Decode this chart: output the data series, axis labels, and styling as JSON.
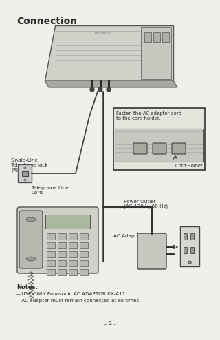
{
  "title": "Connection",
  "page_number": "- 9 -",
  "bg_color": "#f0efeb",
  "notes_header": "Notes:",
  "note1": "—USE ONLY Panasonic AC ADAPTOR KX-A11.",
  "note2": "—AC adaptor must remain connected at all times.",
  "label_single_line": "Single-Line\nTelephone Jack\n(RJ11C)",
  "label_tel_line": "Telephone Line\nCord",
  "label_fasten": "Fasten the AC adaptor cord\nto the cord holder.",
  "label_cord_holder": "Cord Holder",
  "label_power_outlet": "Power Outlet\n(AC 120 V, 60 Hz)",
  "label_ac_adaptor": "AC Adaptor",
  "dark": "#2a2a2a",
  "mid": "#888888",
  "light_gray": "#cccccc",
  "device_gray": "#b8b8b0",
  "inset_bg": "#e0dfd8"
}
